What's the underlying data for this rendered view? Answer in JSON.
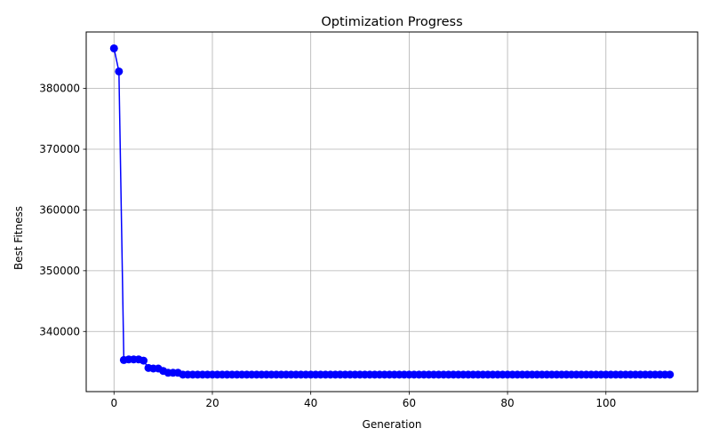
{
  "chart_data": {
    "type": "line",
    "title": "Optimization Progress",
    "xlabel": "Generation",
    "ylabel": "Best Fitness",
    "xlim": [
      -5.65,
      118.65
    ],
    "ylim": [
      330100,
      389300
    ],
    "xticks": [
      0,
      20,
      40,
      60,
      80,
      100
    ],
    "yticks": [
      340000,
      350000,
      360000,
      370000,
      380000
    ],
    "grid": true,
    "series": [
      {
        "color": "#0000ff",
        "marker": "circle",
        "x": [
          0,
          1,
          2,
          3,
          4,
          5,
          6,
          7,
          8,
          9,
          10,
          11,
          12,
          13,
          14,
          15,
          16,
          17,
          18,
          19,
          20,
          21,
          22,
          23,
          24,
          25,
          26,
          27,
          28,
          29,
          30,
          31,
          32,
          33,
          34,
          35,
          36,
          37,
          38,
          39,
          40,
          41,
          42,
          43,
          44,
          45,
          46,
          47,
          48,
          49,
          50,
          51,
          52,
          53,
          54,
          55,
          56,
          57,
          58,
          59,
          60,
          61,
          62,
          63,
          64,
          65,
          66,
          67,
          68,
          69,
          70,
          71,
          72,
          73,
          74,
          75,
          76,
          77,
          78,
          79,
          80,
          81,
          82,
          83,
          84,
          85,
          86,
          87,
          88,
          89,
          90,
          91,
          92,
          93,
          94,
          95,
          96,
          97,
          98,
          99,
          100,
          101,
          102,
          103,
          104,
          105,
          106,
          107,
          108,
          109,
          110,
          111,
          112,
          113
        ],
        "y": [
          386600,
          382800,
          335300,
          335400,
          335400,
          335400,
          335200,
          334000,
          333900,
          333900,
          333500,
          333200,
          333200,
          333200,
          332900,
          332900,
          332900,
          332900,
          332900,
          332900,
          332900,
          332900,
          332900,
          332900,
          332900,
          332900,
          332900,
          332900,
          332900,
          332900,
          332900,
          332900,
          332900,
          332900,
          332900,
          332900,
          332900,
          332900,
          332900,
          332900,
          332900,
          332900,
          332900,
          332900,
          332900,
          332900,
          332900,
          332900,
          332900,
          332900,
          332900,
          332900,
          332900,
          332900,
          332900,
          332900,
          332900,
          332900,
          332900,
          332900,
          332900,
          332900,
          332900,
          332900,
          332900,
          332900,
          332900,
          332900,
          332900,
          332900,
          332900,
          332900,
          332900,
          332900,
          332900,
          332900,
          332900,
          332900,
          332900,
          332900,
          332900,
          332900,
          332900,
          332900,
          332900,
          332900,
          332900,
          332900,
          332900,
          332900,
          332900,
          332900,
          332900,
          332900,
          332900,
          332900,
          332900,
          332900,
          332900,
          332900,
          332900,
          332900,
          332900,
          332900,
          332900,
          332900,
          332900,
          332900,
          332900,
          332900,
          332900,
          332900,
          332900,
          332900
        ]
      }
    ]
  }
}
